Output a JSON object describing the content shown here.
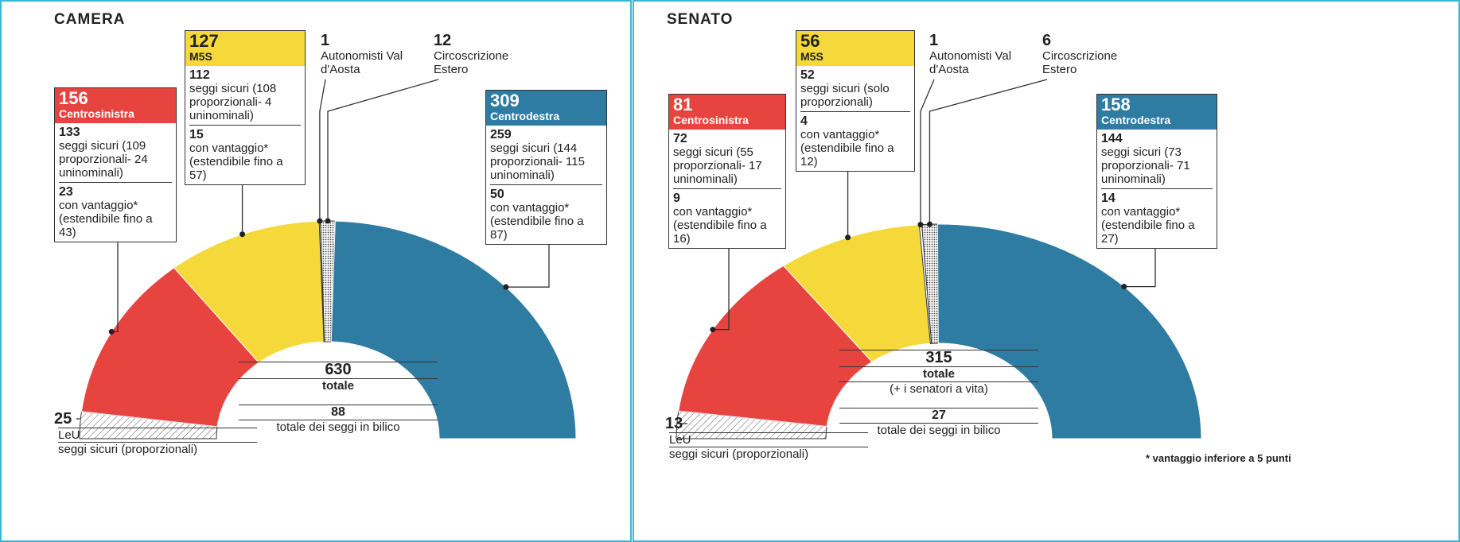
{
  "chart_data": [
    {
      "type": "hemicycle",
      "title": "CAMERA",
      "total": 630,
      "total_label": "totale",
      "contested": 88,
      "contested_label": "totale dei seggi in bilico",
      "series": [
        {
          "name": "LeU",
          "color": "#ffffff",
          "pattern": "hatch",
          "value": 25,
          "note": "seggi sicuri (proporzionali)"
        },
        {
          "name": "Centrosinistra",
          "color": "#e8443f",
          "value": 156,
          "sure": 133,
          "sure_note": "seggi sicuri (109 proporzionali- 24 uninominali)",
          "advantage": 23,
          "advantage_note": "con vantaggio* (estendibile fino a 43)"
        },
        {
          "name": "M5S",
          "color": "#f5d93b",
          "value": 127,
          "sure": 112,
          "sure_note": "seggi sicuri (108 proporzionali- 4 uninominali)",
          "advantage": 15,
          "advantage_note": "con vantaggio* (estendibile fino a 57)"
        },
        {
          "name": "Autonomisti Val d'Aosta",
          "color": "#ffffff",
          "value": 1
        },
        {
          "name": "Circoscrizione Estero",
          "color": "#ffffff",
          "pattern": "dots",
          "value": 12
        },
        {
          "name": "Centrodestra",
          "color": "#2f7ca3",
          "value": 309,
          "sure": 259,
          "sure_note": "seggi sicuri (144 proporzionali- 115 uninominali)",
          "advantage": 50,
          "advantage_note": "con vantaggio* (estendibile fino a 87)"
        }
      ]
    },
    {
      "type": "hemicycle",
      "title": "SENATO",
      "total": 315,
      "total_label": "totale",
      "total_note": "(+ i senatori a vita)",
      "contested": 27,
      "contested_label": "totale dei seggi in bilico",
      "footnote": "* vantaggio inferiore a 5 punti",
      "series": [
        {
          "name": "LeU",
          "color": "#ffffff",
          "pattern": "hatch",
          "value": 13,
          "note": "seggi sicuri (proporzionali)"
        },
        {
          "name": "Centrosinistra",
          "color": "#e8443f",
          "value": 81,
          "sure": 72,
          "sure_note": "seggi sicuri (55 proporzionali- 17 uninominali)",
          "advantage": 9,
          "advantage_note": "con vantaggio* (estendibile fino a 16)"
        },
        {
          "name": "M5S",
          "color": "#f5d93b",
          "value": 56,
          "sure": 52,
          "sure_note": "seggi sicuri (solo proporzionali)",
          "advantage": 4,
          "advantage_note": "con vantaggio* (estendibile fino a 12)"
        },
        {
          "name": "Autonomisti Val d'Aosta",
          "color": "#ffffff",
          "value": 1
        },
        {
          "name": "Circoscrizione Estero",
          "color": "#ffffff",
          "pattern": "dots",
          "value": 6
        },
        {
          "name": "Centrodestra",
          "color": "#2f7ca3",
          "value": 158,
          "sure": 144,
          "sure_note": "seggi sicuri (73 proporzionali- 71 uninominali)",
          "advantage": 14,
          "advantage_note": "con vantaggio* (estendibile fino a 27)"
        }
      ]
    }
  ]
}
